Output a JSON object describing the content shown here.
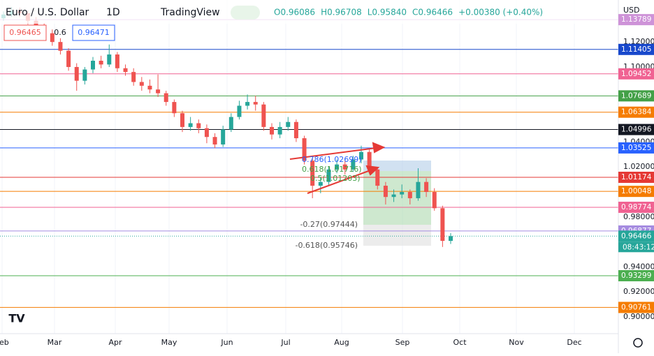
{
  "header": {
    "symbol": "Euro / U.S. Dollar",
    "interval": "1D",
    "source": "TradingView",
    "ohlc_text": [
      "O0.96086",
      "H0.96708",
      "L0.95840",
      "C0.96466",
      "+0.00380 (+0.40%)"
    ],
    "bid": "0.96465",
    "spread": "0.6",
    "ask": "0.96471",
    "currency": "USD",
    "countdown": "08:43:12"
  },
  "chart_data": {
    "type": "candlestick",
    "up_color": "#26a69a",
    "down_color": "#ef5350",
    "open": [
      1.139,
      1.142,
      1.145,
      1.143,
      1.137,
      1.132,
      1.127,
      1.12,
      1.113,
      1.1,
      1.089,
      1.098,
      1.105,
      1.102,
      1.11,
      1.099,
      1.096,
      1.088,
      1.085,
      1.082,
      1.079,
      1.072,
      1.063,
      1.052,
      1.055,
      1.051,
      1.044,
      1.038,
      1.05,
      1.06,
      1.069,
      1.072,
      1.07,
      1.052,
      1.046,
      1.052,
      1.056,
      1.043,
      1.025,
      1.005,
      1.008,
      1.018,
      1.022,
      1.018,
      1.026,
      1.032,
      1.018,
      1.005,
      0.996,
      0.998,
      1.0,
      0.995,
      1.008,
      1.0,
      0.987,
      0.96086
    ],
    "high": [
      1.1445,
      1.148,
      1.1475,
      1.145,
      1.14,
      1.135,
      1.13,
      1.123,
      1.115,
      1.103,
      1.1,
      1.108,
      1.109,
      1.118,
      1.112,
      1.102,
      1.099,
      1.092,
      1.09,
      1.094,
      1.081,
      1.074,
      1.065,
      1.06,
      1.058,
      1.054,
      1.047,
      1.053,
      1.063,
      1.073,
      1.078,
      1.077,
      1.072,
      1.055,
      1.056,
      1.06,
      1.058,
      1.045,
      1.027,
      1.012,
      1.02,
      1.026,
      1.025,
      1.029,
      1.037,
      1.034,
      1.02,
      1.008,
      1.002,
      1.006,
      1.002,
      1.019,
      1.011,
      1.003,
      0.989,
      0.96708
    ],
    "low": [
      1.137,
      1.14,
      1.14,
      1.134,
      1.129,
      1.124,
      1.117,
      1.11,
      1.097,
      1.081,
      1.086,
      1.095,
      1.099,
      1.1,
      1.096,
      1.093,
      1.085,
      1.081,
      1.079,
      1.076,
      1.069,
      1.06,
      1.048,
      1.049,
      1.047,
      1.039,
      1.035,
      1.036,
      1.048,
      1.058,
      1.066,
      1.065,
      1.049,
      1.042,
      1.043,
      1.049,
      1.04,
      1.022,
      0.995,
      0.999,
      1.005,
      1.015,
      1.014,
      1.016,
      1.023,
      1.015,
      1.002,
      0.99,
      0.992,
      0.995,
      0.99,
      0.993,
      0.996,
      0.985,
      0.956,
      0.9584
    ],
    "close": [
      1.142,
      1.145,
      1.143,
      1.137,
      1.132,
      1.127,
      1.12,
      1.113,
      1.1,
      1.089,
      1.098,
      1.105,
      1.102,
      1.11,
      1.099,
      1.096,
      1.088,
      1.085,
      1.082,
      1.079,
      1.072,
      1.063,
      1.052,
      1.055,
      1.051,
      1.044,
      1.038,
      1.05,
      1.06,
      1.069,
      1.072,
      1.07,
      1.052,
      1.046,
      1.052,
      1.056,
      1.043,
      1.025,
      1.005,
      1.008,
      1.018,
      1.022,
      1.018,
      1.026,
      1.032,
      1.018,
      1.005,
      0.996,
      0.998,
      1.0,
      0.995,
      1.008,
      1.0,
      0.987,
      0.96086,
      0.96466
    ],
    "ylim": [
      0.8883,
      1.1536
    ],
    "yticks": [
      {
        "value": 1.12,
        "label": "1.12000"
      },
      {
        "value": 1.1,
        "label": "1.10000"
      },
      {
        "value": 1.04,
        "label": "1.04000"
      },
      {
        "value": 1.02,
        "label": "1.02000"
      },
      {
        "value": 0.98,
        "label": "0.98000"
      },
      {
        "value": 0.94,
        "label": "0.94000"
      },
      {
        "value": 0.92,
        "label": "0.92000"
      },
      {
        "value": 0.9,
        "label": "0.90000"
      }
    ],
    "months": [
      "Feb",
      "Mar",
      "Apr",
      "May",
      "Jun",
      "Jul",
      "Aug",
      "Sep",
      "Oct",
      "Nov",
      "Dec"
    ],
    "levels": [
      1.13789,
      1.11405,
      1.09452,
      1.07689,
      1.06384,
      1.04996,
      1.03525,
      1.01174,
      1.00048,
      0.98774,
      0.96877,
      0.96466,
      0.93299,
      0.90761
    ],
    "level_colors": [
      "#ce93d8",
      "#1848cc",
      "#f06292",
      "#43a047",
      "#f57c00",
      "#131722",
      "#2962ff",
      "#e53935",
      "#f57c00",
      "#f06292",
      "#a58be0",
      "#26a69a",
      "#4caf50",
      "#f57c00"
    ],
    "fib_labels": [
      "0.786(1.02699)",
      "0.618(1.01716)",
      "0.5(1.01203)",
      "-0.27(0.97444)",
      "-0.618(0.95746)"
    ]
  }
}
